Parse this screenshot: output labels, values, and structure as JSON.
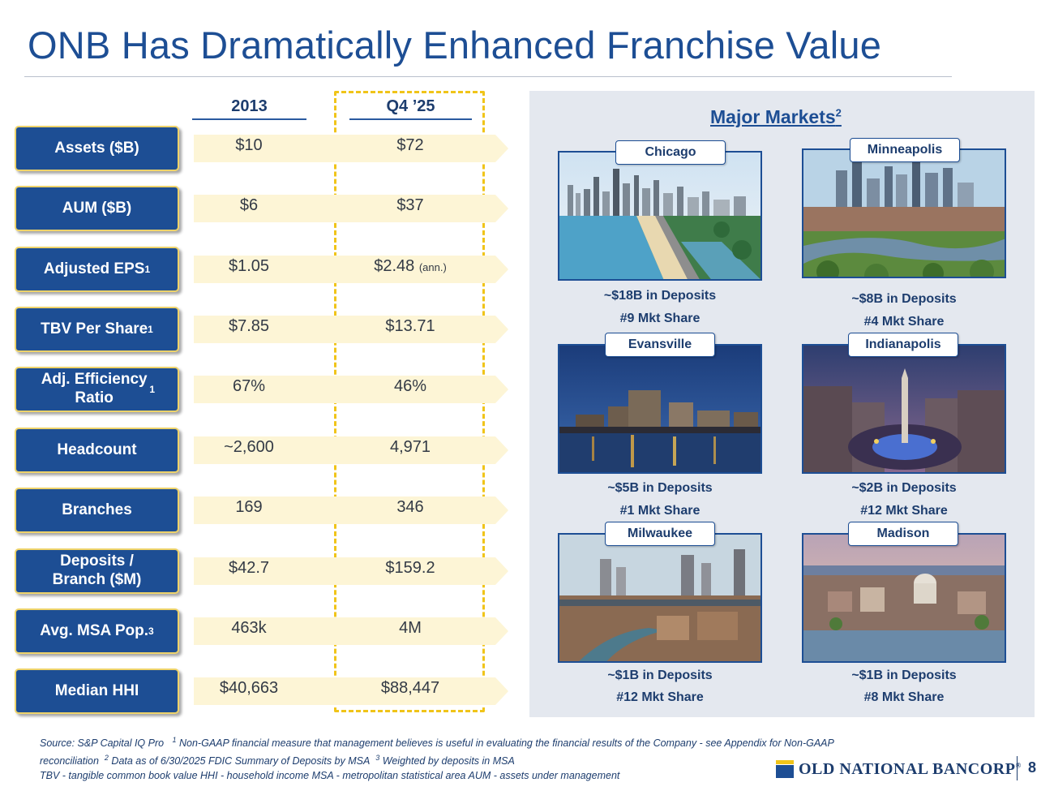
{
  "title": "ONB Has Dramatically Enhanced Franchise Value",
  "columns": {
    "left": "2013",
    "right": "Q4 ’25"
  },
  "metrics": [
    {
      "label": "Assets ($B)",
      "sup": "",
      "v2013": "$10",
      "vq4": "$72",
      "note": ""
    },
    {
      "label": "AUM ($B)",
      "sup": "",
      "v2013": "$6",
      "vq4": "$37",
      "note": ""
    },
    {
      "label": "Adjusted EPS",
      "sup": "1",
      "v2013": "$1.05",
      "vq4": "$2.48",
      "note": "(ann.)"
    },
    {
      "label": "TBV Per Share",
      "sup": "1",
      "v2013": "$7.85",
      "vq4": "$13.71",
      "note": ""
    },
    {
      "label": "Adj. Efficiency Ratio",
      "sup": "1",
      "v2013": "67%",
      "vq4": "46%",
      "note": ""
    },
    {
      "label": "Headcount",
      "sup": "",
      "v2013": "~2,600",
      "vq4": "4,971",
      "note": ""
    },
    {
      "label": "Branches",
      "sup": "",
      "v2013": "169",
      "vq4": "346",
      "note": ""
    },
    {
      "label": "Deposits / Branch ($M)",
      "sup": "",
      "v2013": "$42.7",
      "vq4": "$159.2",
      "note": ""
    },
    {
      "label": "Avg. MSA Pop.",
      "sup": "3",
      "v2013": "463k",
      "vq4": "4M",
      "note": ""
    },
    {
      "label": "Median HHI",
      "sup": "",
      "v2013": "$40,663",
      "vq4": "$88,447",
      "note": ""
    }
  ],
  "markets": {
    "title": "Major Markets",
    "title_sup": "2",
    "cities": [
      {
        "name": "Chicago",
        "deposits": "~$18B in Deposits",
        "share": "#9 Mkt Share"
      },
      {
        "name": "Minneapolis",
        "deposits": "~$8B in Deposits",
        "share": "#4 Mkt Share"
      },
      {
        "name": "Evansville",
        "deposits": "~$5B in Deposits",
        "share": "#1 Mkt Share"
      },
      {
        "name": "Indianapolis",
        "deposits": "~$2B in Deposits",
        "share": "#12 Mkt Share"
      },
      {
        "name": "Milwaukee",
        "deposits": "~$1B in Deposits",
        "share": "#12 Mkt Share"
      },
      {
        "name": "Madison",
        "deposits": "~$1B in Deposits",
        "share": "#8 Mkt Share"
      }
    ]
  },
  "footnote": {
    "line1a": "Source: S&P Capital IQ Pro",
    "line1b": "Non-GAAP financial measure that management believes is useful in evaluating the financial results of the Company - see Appendix for Non-GAAP",
    "line2a": "reconciliation",
    "line2b": "Data as of 6/30/2025 FDIC Summary of Deposits by MSA",
    "line2c": "Weighted by deposits in MSA",
    "line3": "TBV - tangible common book value   HHI - household income   MSA - metropolitan statistical area   AUM - assets under management",
    "s1": "1",
    "s2": "2",
    "s3": "3"
  },
  "brand": {
    "name": "OLD NATIONAL BANCORP",
    "reg": "®",
    "primary_color": "#1d4e94",
    "accent_color": "#f0c419"
  },
  "page_number": "8"
}
